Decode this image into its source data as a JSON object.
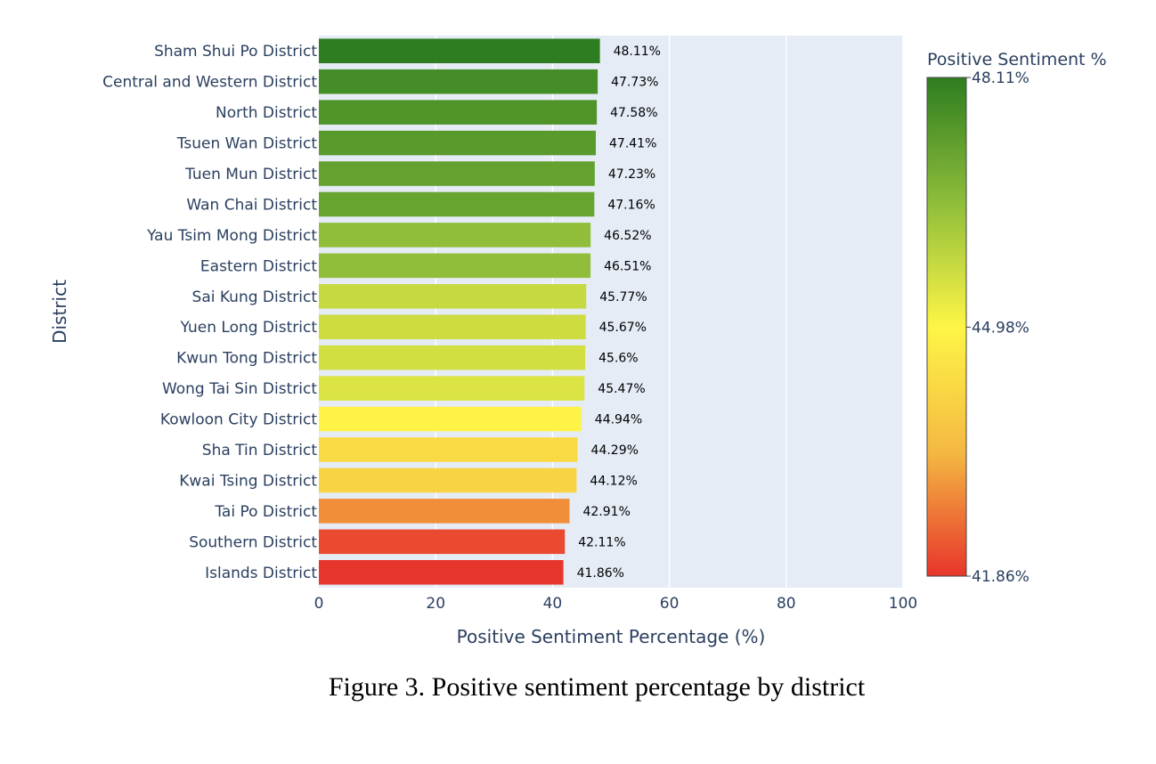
{
  "chart_data": {
    "type": "bar",
    "orientation": "horizontal",
    "xlabel": "Positive Sentiment Percentage (%)",
    "ylabel": "District",
    "xlim": [
      0,
      100
    ],
    "x_ticks": [
      0,
      20,
      40,
      60,
      80,
      100
    ],
    "grid": true,
    "categories": [
      "Sham Shui Po District",
      "Central and Western District",
      "North District",
      "Tsuen Wan District",
      "Tuen Mun District",
      "Wan Chai District",
      "Yau Tsim Mong District",
      "Eastern District",
      "Sai Kung District",
      "Yuen Long District",
      "Kwun Tong District",
      "Wong Tai Sin District",
      "Kowloon City District",
      "Sha Tin District",
      "Kwai Tsing District",
      "Tai Po District",
      "Southern District",
      "Islands District"
    ],
    "values": [
      48.11,
      47.73,
      47.58,
      47.41,
      47.23,
      47.16,
      46.52,
      46.51,
      45.77,
      45.67,
      45.6,
      45.47,
      44.94,
      44.29,
      44.12,
      42.91,
      42.11,
      41.86
    ],
    "data_labels": [
      "48.11%",
      "47.73%",
      "47.58%",
      "47.41%",
      "47.23%",
      "47.16%",
      "46.52%",
      "46.51%",
      "45.77%",
      "45.67%",
      "45.6%",
      "45.47%",
      "44.94%",
      "44.29%",
      "44.12%",
      "42.91%",
      "42.11%",
      "41.86%"
    ],
    "colorbar": {
      "title": "Positive Sentiment %",
      "min": 41.86,
      "max": 48.11,
      "tick_labels": [
        "48.11%",
        "44.98%",
        "41.86%"
      ],
      "tick_values": [
        48.11,
        44.98,
        41.86
      ],
      "colors": [
        "#e8352b",
        "#f4b942",
        "#fef546",
        "#c7df48",
        "#7cb342",
        "#2e7d20"
      ]
    },
    "plot_background": "#e5ecf6"
  },
  "caption": "Figure 3. Positive sentiment percentage by district"
}
